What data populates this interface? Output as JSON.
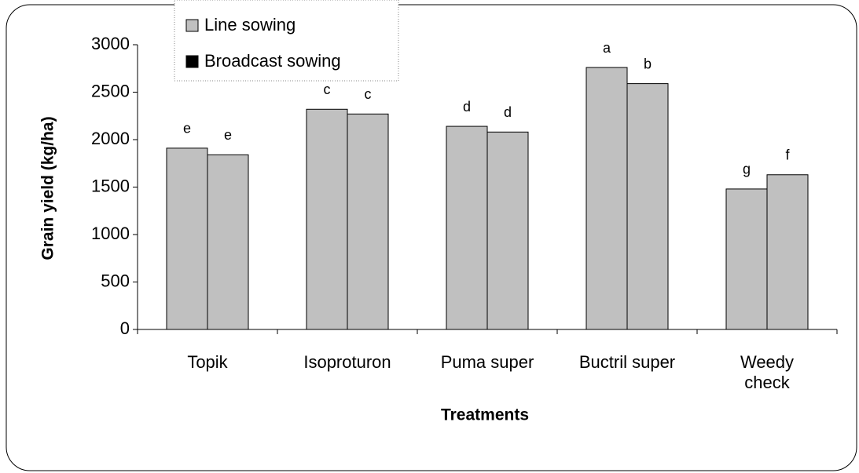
{
  "chart_data": {
    "type": "bar",
    "x_label": "Treatments",
    "y_label": "Grain yield (kg/ha)",
    "categories": [
      "Topik",
      "Isoproturon",
      "Puma super",
      "Buctril super",
      "Weedy\ncheck"
    ],
    "series": [
      {
        "name": "Line sowing",
        "color": "#c0c0c0",
        "legend_color": "#c0c0c0",
        "values": [
          1910,
          2320,
          2140,
          2760,
          1480
        ],
        "letters": [
          "e",
          "c",
          "d",
          "a",
          "g"
        ]
      },
      {
        "name": "Broadcast sowing",
        "color": "#c0c0c0",
        "legend_color": "#000000",
        "values": [
          1840,
          2270,
          2080,
          2590,
          1630
        ],
        "letters": [
          "e",
          "c",
          "d",
          "b",
          "f"
        ]
      }
    ],
    "ylim": [
      0,
      3000
    ],
    "yticks": [
      0,
      500,
      1000,
      1500,
      2000,
      2500,
      3000
    ],
    "grid": false
  }
}
